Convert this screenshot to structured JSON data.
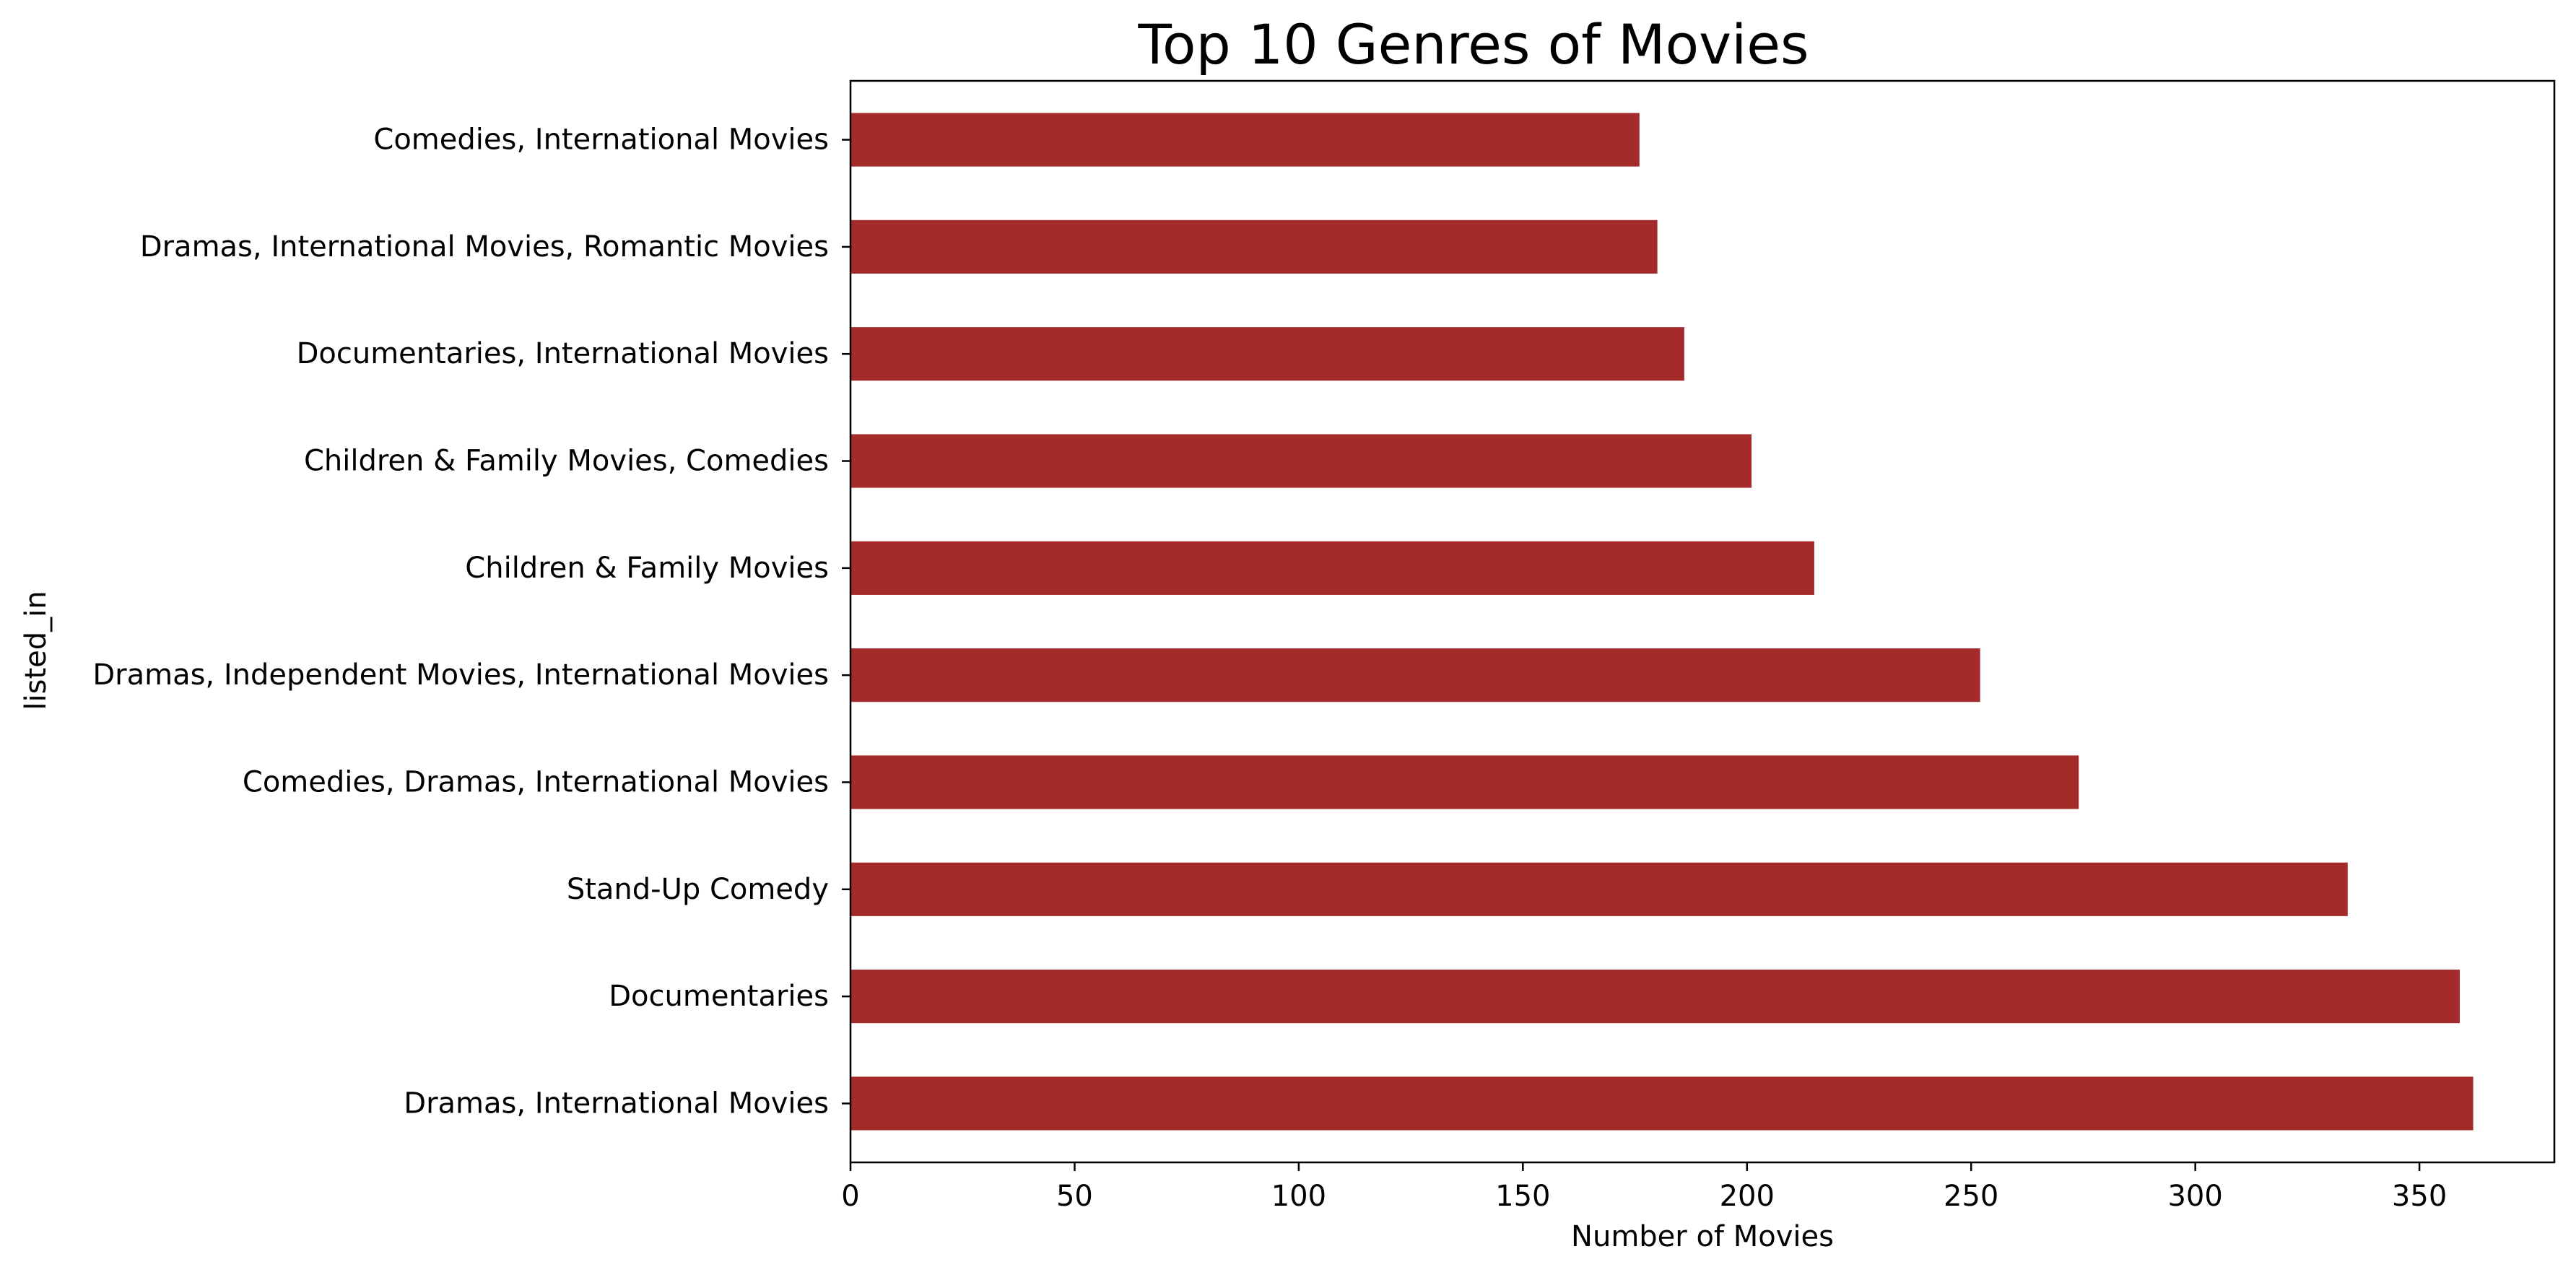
{
  "chart_data": {
    "type": "bar",
    "orientation": "horizontal",
    "title": "Top 10 Genres of Movies",
    "xlabel": "Number of Movies",
    "ylabel": "listed_in",
    "categories": [
      "Dramas, International Movies",
      "Documentaries",
      "Stand-Up Comedy",
      "Comedies, Dramas, International Movies",
      "Dramas, Independent Movies, International Movies",
      "Children & Family Movies",
      "Children & Family Movies, Comedies",
      "Documentaries, International Movies",
      "Dramas, International Movies, Romantic Movies",
      "Comedies, International Movies"
    ],
    "values": [
      362,
      359,
      334,
      274,
      252,
      215,
      201,
      186,
      180,
      176
    ],
    "xlim": [
      0,
      380.1
    ],
    "xticks": [
      0,
      50,
      100,
      150,
      200,
      250,
      300,
      350
    ],
    "grid": false,
    "legend": "none",
    "bar_color": "#a52a2a"
  }
}
